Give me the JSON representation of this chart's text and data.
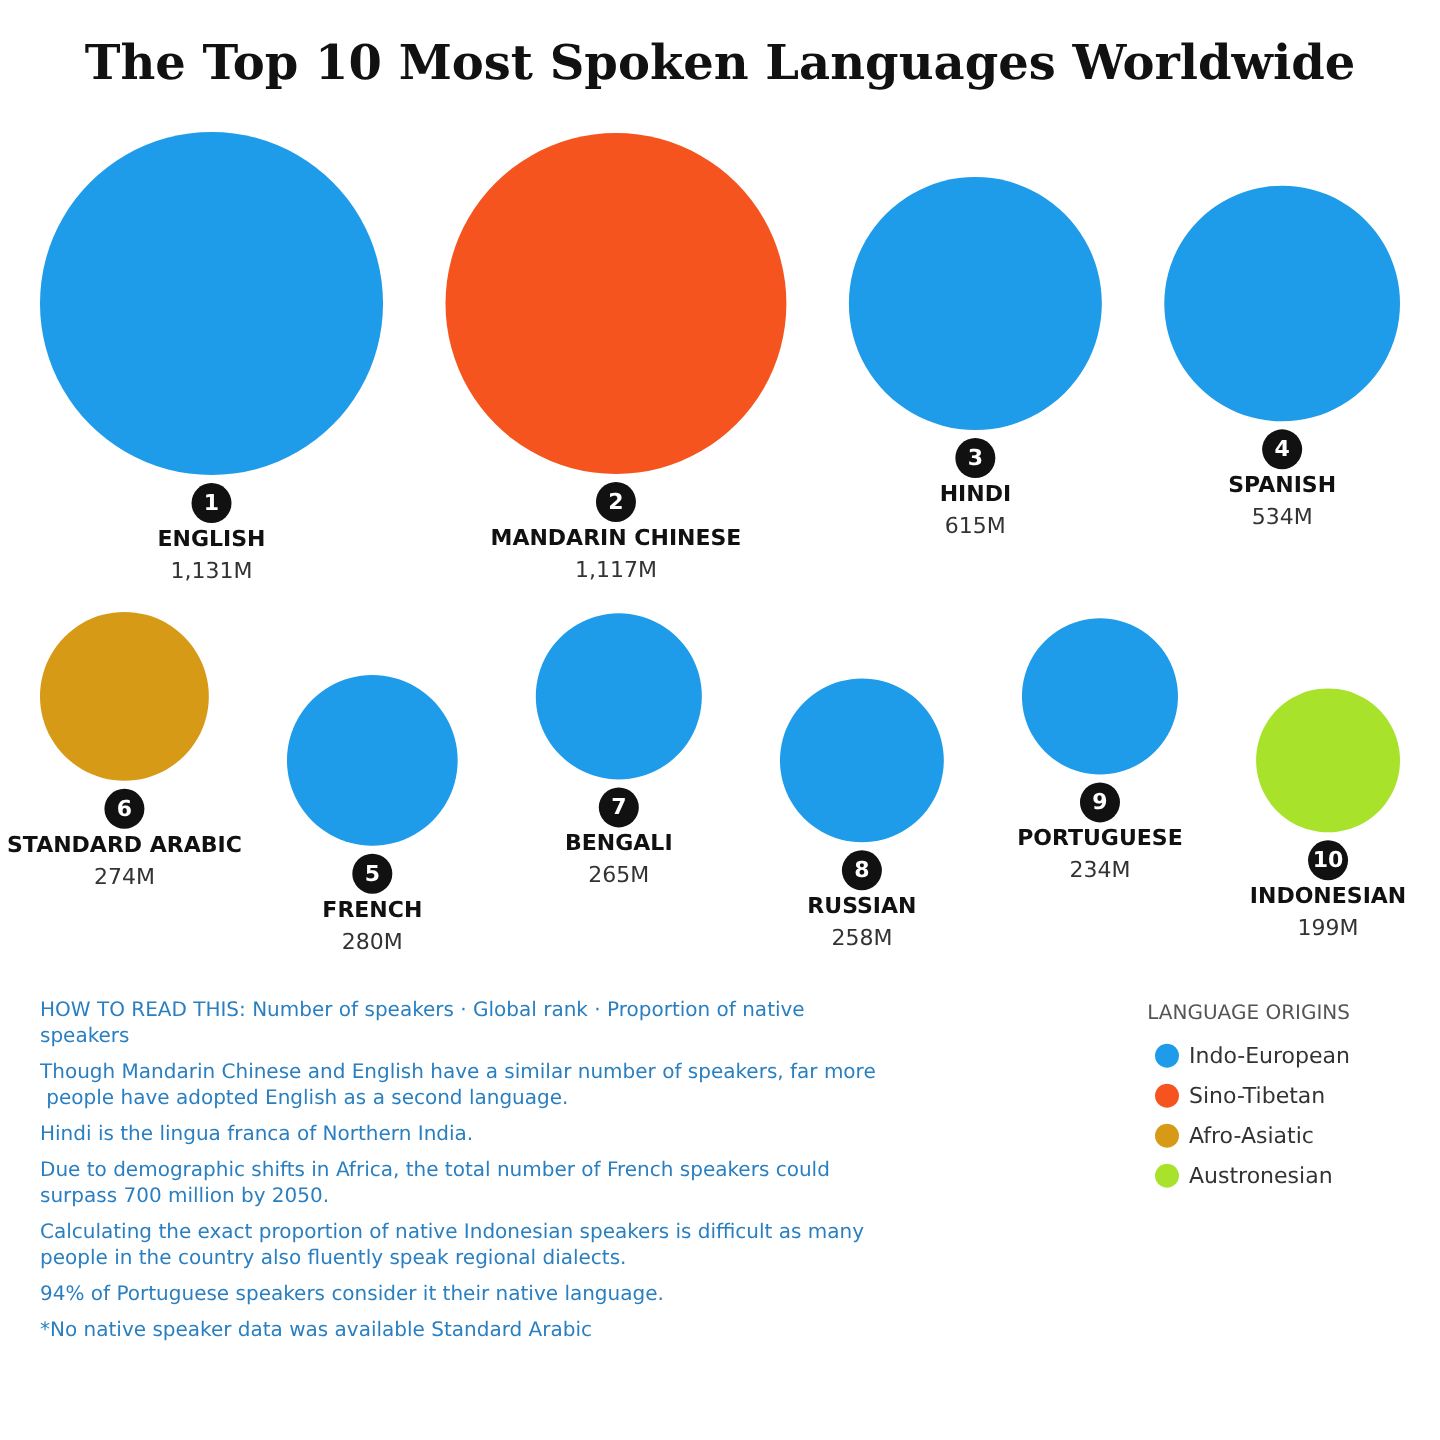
{
  "chart_data": {
    "type": "other",
    "title": "The Top 10 Most Spoken Languages Worldwide",
    "categories": [
      "ENGLISH",
      "MANDARIN CHINESE",
      "HINDI",
      "SPANISH",
      "STANDARD ARABIC",
      "FRENCH",
      "BENGALI",
      "RUSSIAN",
      "PORTUGUESE",
      "INDONESIAN"
    ],
    "series": [
      {
        "name": "Indo-European",
        "color": "#1e9be9",
        "values": [
          1131,
          null,
          615,
          534,
          null,
          280,
          265,
          258,
          234,
          null
        ],
        "value_labels": [
          "1,131M",
          null,
          "615M",
          "534M",
          null,
          "280M",
          "265M",
          "258M",
          "234M",
          null
        ]
      },
      {
        "name": "Sino-Tibetan",
        "color": "#f5541f",
        "values": [
          null,
          1117,
          null,
          null,
          null,
          null,
          null,
          null,
          null,
          null
        ],
        "value_labels": [
          null,
          "1,117M",
          null,
          null,
          null,
          null,
          null,
          null,
          null,
          null
        ]
      },
      {
        "name": "Afro-Asiatic",
        "color": "#d69a17",
        "values": [
          null,
          null,
          null,
          null,
          274,
          null,
          null,
          null,
          null,
          null
        ],
        "value_labels": [
          null,
          null,
          null,
          null,
          "274M",
          null,
          null,
          null,
          null,
          null
        ]
      },
      {
        "name": "Austronesian",
        "color": "#a8e22a",
        "values": [
          null,
          null,
          null,
          null,
          null,
          null,
          null,
          null,
          null,
          199
        ],
        "value_labels": [
          null,
          null,
          null,
          null,
          null,
          null,
          null,
          null,
          null,
          "199M"
        ]
      }
    ],
    "legend": "bottom right",
    "legend_title": "LANGUAGE ORIGINS",
    "annotations": [
      {
        "text": "1",
        "x": "ENGLISH"
      },
      {
        "text": "2",
        "x": "MANDARIN CHINESE"
      },
      {
        "text": "3",
        "x": "HINDI"
      },
      {
        "text": "4",
        "x": "SPANISH"
      },
      {
        "text": "5",
        "x": "FRENCH"
      },
      {
        "text": "6",
        "x": "STANDARD ARABIC"
      },
      {
        "text": "7",
        "x": "BENGALI"
      },
      {
        "text": "8",
        "x": "RUSSIAN"
      },
      {
        "text": "9",
        "x": "PORTUGUESE"
      },
      {
        "text": "10",
        "x": "INDONESIAN"
      },
      "HOW TO READ THIS: Number of speakers · Global rank · Proportion of native speakers",
      "Though Mandarin Chinese and English have a similar number of speakers, far more people have adopted English as a second language.",
      "Hindi is the lingua franca of Northern India.",
      "Due to demographic shifts in Africa, the total number of French speakers could surpass 700 million by 2050.",
      "Calculating the exact proportion of native Indonesian speakers is difficult as many people in the country also fluently speak regional dialects.",
      "94% of Portuguese speakers consider it their native language.",
      "*No native speaker data was available Standard Arabic"
    ]
  }
}
